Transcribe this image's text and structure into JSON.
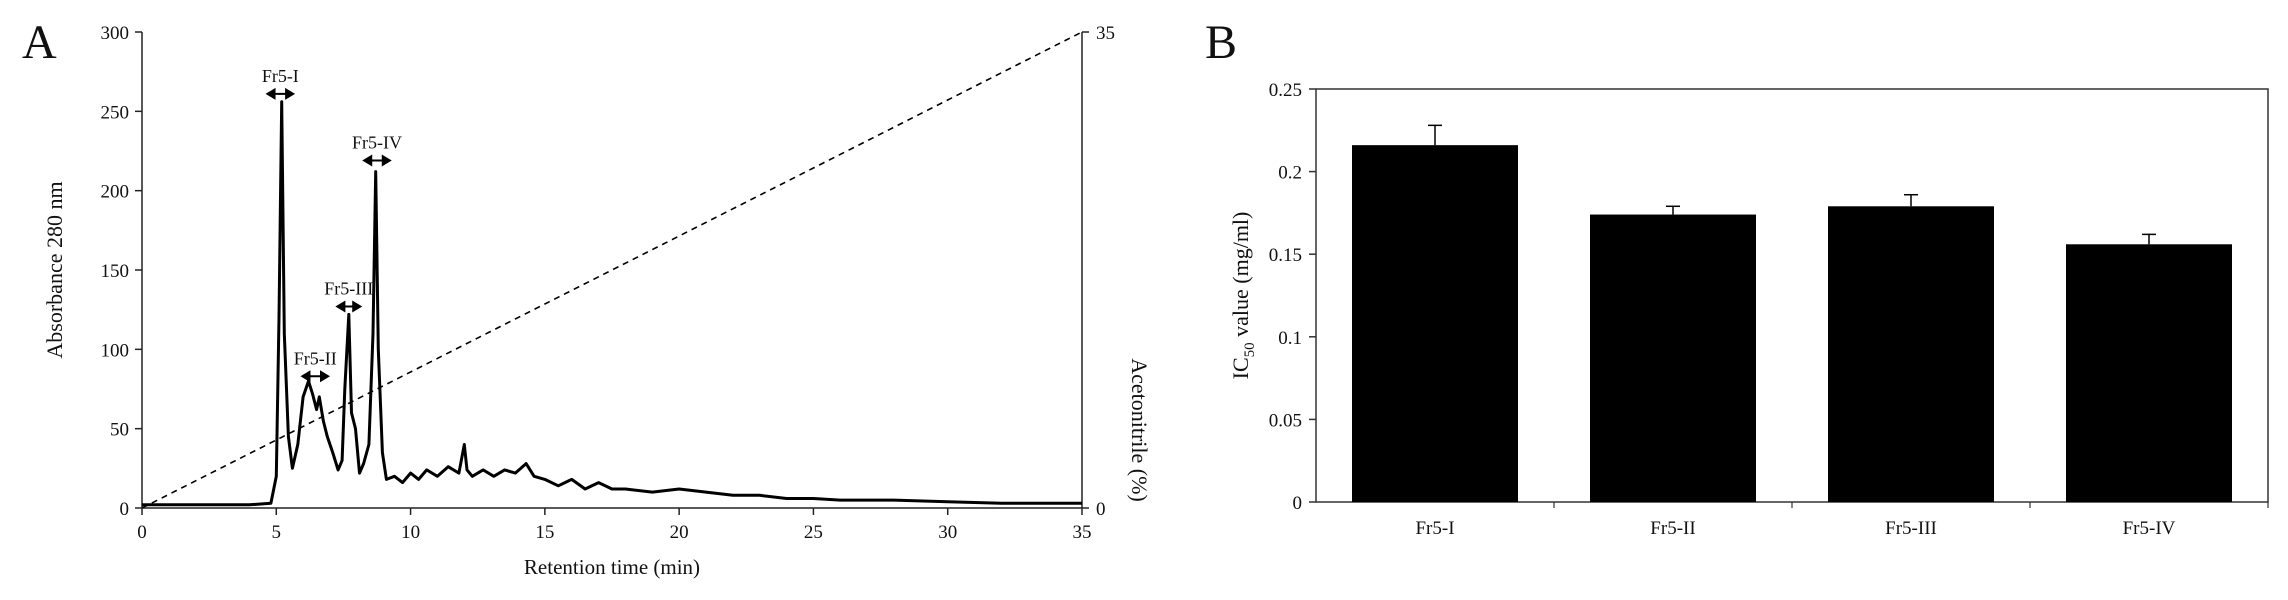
{
  "panel_a_letter": "A",
  "panel_b_letter": "B",
  "chart_data": [
    {
      "type": "line",
      "panel": "A",
      "xlabel": "Retention time (min)",
      "ylabel": "Absorbance 280 nm",
      "y2label": "Acetonitrile (%)",
      "xlim": [
        0,
        35
      ],
      "ylim": [
        0,
        300
      ],
      "y2lim": [
        0,
        35
      ],
      "xticks": [
        0,
        5,
        10,
        15,
        20,
        25,
        30,
        35
      ],
      "yticks": [
        0,
        50,
        100,
        150,
        200,
        250,
        300
      ],
      "y2ticks": [
        0,
        35
      ],
      "grid": false,
      "series": [
        {
          "style": "solid",
          "x": [
            0,
            1,
            2,
            3,
            4,
            4.8,
            5.0,
            5.1,
            5.2,
            5.3,
            5.45,
            5.6,
            5.8,
            6.0,
            6.2,
            6.35,
            6.5,
            6.6,
            6.75,
            6.9,
            7.1,
            7.3,
            7.45,
            7.55,
            7.7,
            7.8,
            7.95,
            8.1,
            8.25,
            8.45,
            8.6,
            8.7,
            8.8,
            8.95,
            9.1,
            9.4,
            9.7,
            10.0,
            10.3,
            10.6,
            11.0,
            11.4,
            11.8,
            12.0,
            12.1,
            12.3,
            12.7,
            13.1,
            13.5,
            13.9,
            14.3,
            14.6,
            15.0,
            15.5,
            16.0,
            16.5,
            17.0,
            17.5,
            18.0,
            19.0,
            20.0,
            21.0,
            22.0,
            23.0,
            24.0,
            25.0,
            26.0,
            28.0,
            30.0,
            32.0,
            35.0
          ],
          "values": [
            2,
            2,
            2,
            2,
            2,
            3,
            20,
            120,
            256,
            110,
            45,
            25,
            40,
            70,
            80,
            72,
            62,
            70,
            55,
            45,
            35,
            24,
            30,
            75,
            122,
            60,
            50,
            22,
            28,
            40,
            110,
            212,
            100,
            35,
            18,
            20,
            16,
            22,
            18,
            24,
            20,
            26,
            22,
            40,
            24,
            20,
            24,
            20,
            24,
            22,
            28,
            20,
            18,
            14,
            18,
            12,
            16,
            12,
            12,
            10,
            12,
            10,
            8,
            8,
            6,
            6,
            5,
            5,
            4,
            3,
            3
          ]
        },
        {
          "style": "dashed",
          "axis": "y2",
          "x": [
            0,
            35
          ],
          "values": [
            0,
            35
          ]
        }
      ],
      "annotations": [
        {
          "text": "Fr5-I",
          "x_range": [
            4.6,
            5.7
          ],
          "y": 261
        },
        {
          "text": "Fr5-II",
          "x_range": [
            5.9,
            7.0
          ],
          "y": 83
        },
        {
          "text": "Fr5-III",
          "x_range": [
            7.2,
            8.2
          ],
          "y": 127
        },
        {
          "text": "Fr5-IV",
          "x_range": [
            8.2,
            9.3
          ],
          "y": 219
        }
      ]
    },
    {
      "type": "bar",
      "panel": "B",
      "xlabel": "",
      "ylabel_main": "IC",
      "ylabel_sub": "50",
      "ylabel_rest": " value (mg/ml)",
      "categories": [
        "Fr5-I",
        "Fr5-II",
        "Fr5-III",
        "Fr5-IV"
      ],
      "values": [
        0.216,
        0.174,
        0.179,
        0.156
      ],
      "errors": [
        0.012,
        0.005,
        0.007,
        0.006
      ],
      "ylim": [
        0,
        0.25
      ],
      "yticks": [
        "0",
        "0.05",
        "0.1",
        "0.15",
        "0.2",
        "0.25"
      ],
      "grid": false,
      "bar_color": "#000000"
    }
  ]
}
